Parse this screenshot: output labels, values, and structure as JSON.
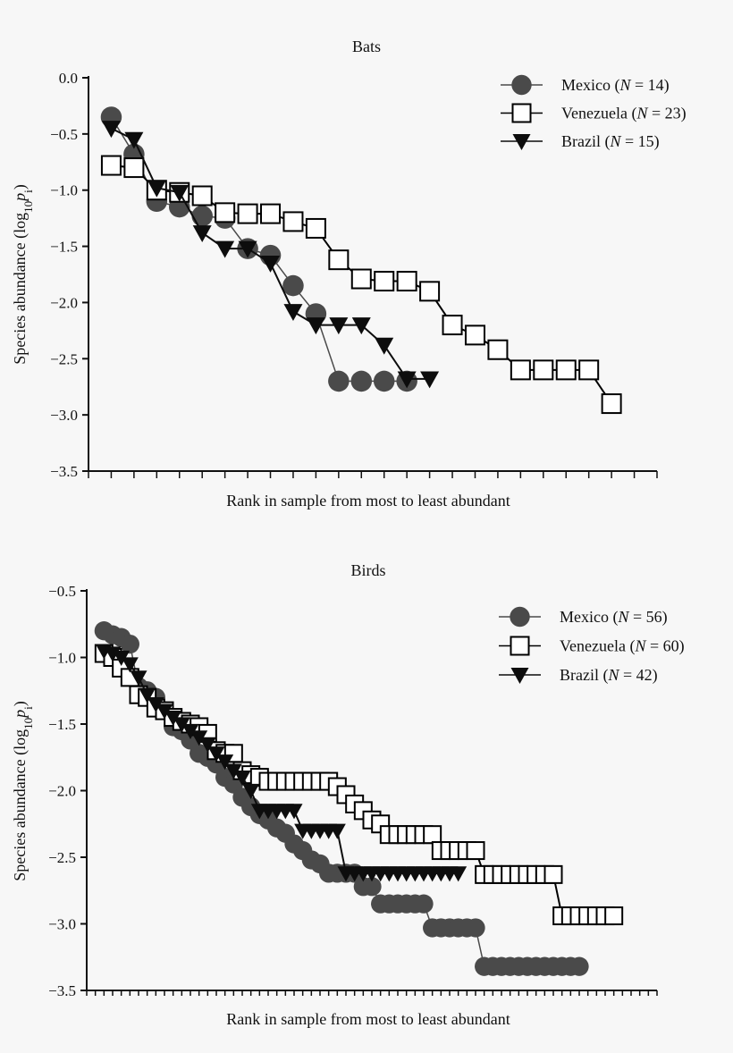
{
  "chart_data": [
    {
      "type": "line",
      "title": "Bats",
      "xlabel": "Rank in sample from most to least abundant",
      "ylabel": "Species abundance (log10 pi)",
      "ylabel_parts": {
        "main": "Species abundance (log",
        "sub": "10",
        "var": "p",
        "varsub": "i",
        "close": ")"
      },
      "xlim": [
        0,
        25
      ],
      "ylim": [
        -3.5,
        0.0
      ],
      "yticks": [
        "0.0",
        "-0.5",
        "-1.0",
        "-1.5",
        "-2.0",
        "-2.5",
        "-3.0",
        "-3.5"
      ],
      "ytick_values": [
        0,
        -0.5,
        -1,
        -1.5,
        -2,
        -2.5,
        -3,
        -3.5
      ],
      "xtick_step": 1,
      "grid": false,
      "legend_placement": "top-right",
      "series": [
        {
          "name": "Mexico (N = 14)",
          "label": "Mexico (",
          "n": "N",
          "eq": " = 14)",
          "marker": "circle",
          "color": "#4a4a4a",
          "values": [
            -0.35,
            -0.68,
            -1.1,
            -1.15,
            -1.23,
            -1.25,
            -1.52,
            -1.58,
            -1.85,
            -2.1,
            -2.7,
            -2.7,
            -2.7,
            -2.7
          ]
        },
        {
          "name": "Venezuela (N = 23)",
          "label": "Venezuela (",
          "n": "N",
          "eq": " = 23)",
          "marker": "square",
          "color": "#000000",
          "values": [
            -0.78,
            -0.8,
            -1.0,
            -1.02,
            -1.05,
            -1.2,
            -1.21,
            -1.21,
            -1.28,
            -1.34,
            -1.62,
            -1.79,
            -1.81,
            -1.81,
            -1.9,
            -2.2,
            -2.29,
            -2.42,
            -2.6,
            -2.6,
            -2.6,
            -2.6,
            -2.9
          ]
        },
        {
          "name": "Brazil (N = 15)",
          "label": "Brazil (",
          "n": "N",
          "eq": " = 15)",
          "marker": "triangle-down",
          "color": "#0d0d0d",
          "values": [
            -0.45,
            -0.55,
            -0.98,
            -1.02,
            -1.38,
            -1.52,
            -1.52,
            -1.65,
            -2.08,
            -2.2,
            -2.2,
            -2.2,
            -2.38,
            -2.68,
            -2.68
          ]
        }
      ]
    },
    {
      "type": "line",
      "title": "Birds",
      "xlabel": "Rank in sample from most to least abundant",
      "ylabel": "Species abundance (log10 pi)",
      "ylabel_parts": {
        "main": "Species abundance (log",
        "sub": "10",
        "var": "p",
        "varsub": "i",
        "close": ")"
      },
      "xlim": [
        -1,
        65
      ],
      "ylim": [
        -3.5,
        -0.5
      ],
      "yticks": [
        "-0.5",
        "-1.0",
        "-1.5",
        "-2.0",
        "-2.5",
        "-3.0",
        "-3.5"
      ],
      "ytick_values": [
        -0.5,
        -1,
        -1.5,
        -2,
        -2.5,
        -3,
        -3.5
      ],
      "xtick_step": 1,
      "grid": false,
      "legend_placement": "top-right",
      "series": [
        {
          "name": "Mexico (N = 56)",
          "label": "Mexico (",
          "n": "N",
          "eq": " = 56)",
          "marker": "circle",
          "color": "#4a4a4a",
          "values": [
            -0.8,
            -0.83,
            -0.85,
            -0.9,
            -1.22,
            -1.25,
            -1.3,
            -1.4,
            -1.52,
            -1.55,
            -1.62,
            -1.72,
            -1.75,
            -1.8,
            -1.9,
            -1.95,
            -2.05,
            -2.12,
            -2.18,
            -2.22,
            -2.28,
            -2.32,
            -2.4,
            -2.45,
            -2.52,
            -2.55,
            -2.62,
            -2.62,
            -2.62,
            -2.62,
            -2.72,
            -2.72,
            -2.85,
            -2.85,
            -2.85,
            -2.85,
            -2.85,
            -2.85,
            -3.03,
            -3.03,
            -3.03,
            -3.03,
            -3.03,
            -3.03,
            -3.32,
            -3.32,
            -3.32,
            -3.32,
            -3.32,
            -3.32,
            -3.32,
            -3.32,
            -3.32,
            -3.32,
            -3.32,
            -3.32
          ]
        },
        {
          "name": "Venezuela (N = 60)",
          "label": "Venezuela (",
          "n": "N",
          "eq": " = 60)",
          "marker": "square",
          "color": "#000000",
          "values": [
            -0.97,
            -1.0,
            -1.08,
            -1.15,
            -1.28,
            -1.3,
            -1.38,
            -1.4,
            -1.45,
            -1.48,
            -1.5,
            -1.52,
            -1.57,
            -1.7,
            -1.72,
            -1.72,
            -1.85,
            -1.88,
            -1.9,
            -1.93,
            -1.93,
            -1.93,
            -1.93,
            -1.93,
            -1.93,
            -1.93,
            -1.93,
            -1.97,
            -2.03,
            -2.1,
            -2.15,
            -2.22,
            -2.25,
            -2.33,
            -2.33,
            -2.33,
            -2.33,
            -2.33,
            -2.33,
            -2.45,
            -2.45,
            -2.45,
            -2.45,
            -2.45,
            -2.63,
            -2.63,
            -2.63,
            -2.63,
            -2.63,
            -2.63,
            -2.63,
            -2.63,
            -2.63,
            -2.94,
            -2.94,
            -2.94,
            -2.94,
            -2.94,
            -2.94,
            -2.94
          ]
        },
        {
          "name": "Brazil (N = 42)",
          "label": "Brazil (",
          "n": "N",
          "eq": " = 42)",
          "marker": "triangle-down",
          "color": "#0d0d0d",
          "values": [
            -0.95,
            -0.97,
            -1.0,
            -1.05,
            -1.15,
            -1.28,
            -1.35,
            -1.4,
            -1.45,
            -1.5,
            -1.55,
            -1.6,
            -1.65,
            -1.72,
            -1.78,
            -1.85,
            -1.9,
            -2.0,
            -2.15,
            -2.15,
            -2.15,
            -2.15,
            -2.15,
            -2.3,
            -2.3,
            -2.3,
            -2.3,
            -2.3,
            -2.62,
            -2.62,
            -2.62,
            -2.62,
            -2.62,
            -2.62,
            -2.62,
            -2.62,
            -2.62,
            -2.62,
            -2.62,
            -2.62,
            -2.62,
            -2.62
          ]
        }
      ]
    }
  ]
}
